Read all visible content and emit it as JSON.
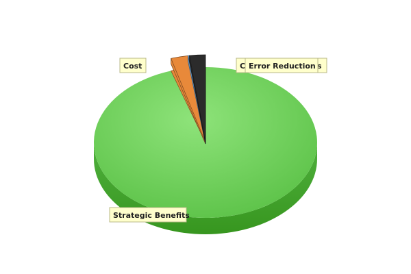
{
  "chart_data": {
    "type": "pie",
    "style": "3d",
    "title": "",
    "legend": "none",
    "slices": [
      {
        "label": "Strategic Benefits",
        "value": 95.0,
        "color": "#6fd25e"
      },
      {
        "label": "Cost",
        "value": 2.5,
        "color": "#e8893a"
      },
      {
        "label": "C",
        "value": 0.2,
        "color": "#6aa4d9"
      },
      {
        "label": "Error Reduction",
        "value": 2.3,
        "color": "#2b2b2b"
      }
    ],
    "label_overlap_suffix": "s"
  }
}
